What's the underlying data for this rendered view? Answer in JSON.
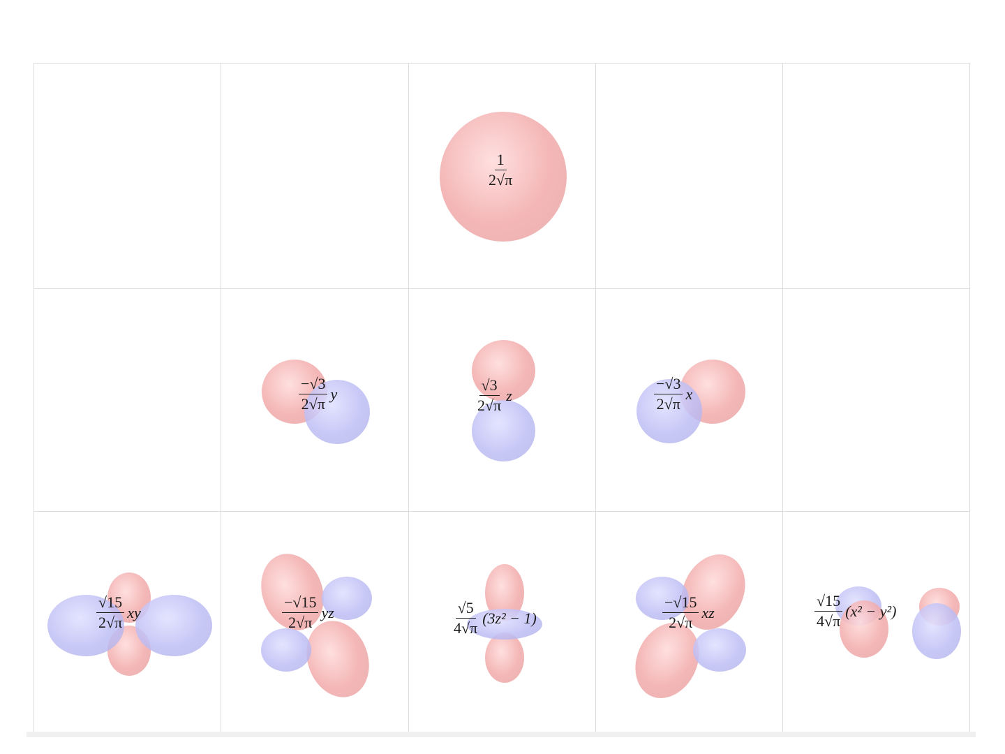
{
  "grid": {
    "rows": [
      {
        "cells": [
          {
            "formula": null
          },
          {
            "formula": null
          },
          {
            "formula": {
              "num": "1",
              "den": "2√π",
              "suffix": ""
            }
          },
          {
            "formula": null
          },
          {
            "formula": null
          }
        ]
      },
      {
        "cells": [
          {
            "formula": null
          },
          {
            "formula": {
              "num": "−√3",
              "den": "2√π",
              "suffix": "y"
            }
          },
          {
            "formula": {
              "num": "√3",
              "den": "2√π",
              "suffix": "z"
            }
          },
          {
            "formula": {
              "num": "−√3",
              "den": "2√π",
              "suffix": "x"
            }
          },
          {
            "formula": null
          }
        ]
      },
      {
        "cells": [
          {
            "formula": {
              "num": "√15",
              "den": "2√π",
              "suffix": "xy"
            }
          },
          {
            "formula": {
              "num": "−√15",
              "den": "2√π",
              "suffix": "yz"
            }
          },
          {
            "formula": {
              "num": "√5",
              "den": "4√π",
              "suffix": "(3z² − 1)"
            }
          },
          {
            "formula": {
              "num": "−√15",
              "den": "2√π",
              "suffix": "xz"
            }
          },
          {
            "formula": {
              "num": "√15",
              "den": "4√π",
              "suffix": "(x² − y²)"
            }
          }
        ]
      }
    ]
  },
  "colors": {
    "positive_lobe": "#f2aaaa",
    "negative_lobe": "#bebef5",
    "grid_line": "#dcdcdc"
  }
}
